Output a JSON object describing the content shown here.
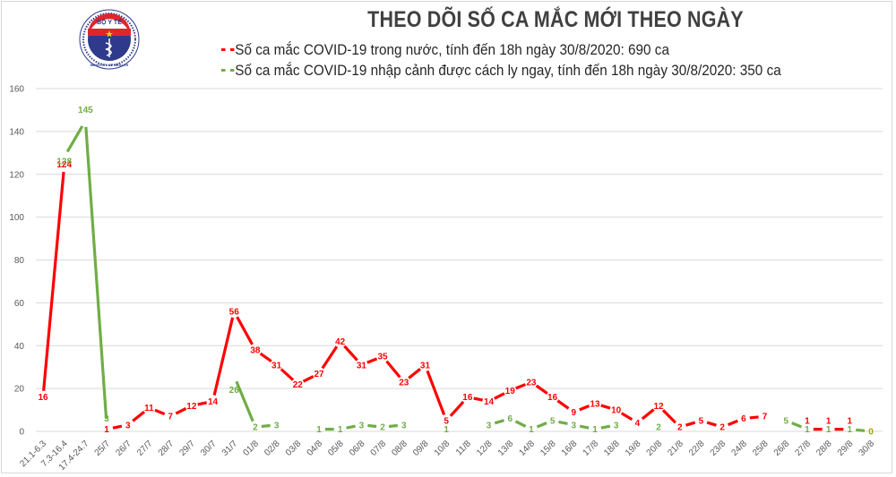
{
  "header": {
    "logo": {
      "top_text": "BỘ Y TẾ",
      "bottom_text": "MINISTRY OF HEALTH"
    },
    "title": "THEO DÕI SỐ CA MẮC MỚI THEO NGÀY"
  },
  "legend": {
    "items": [
      {
        "label": "Số ca mắc COVID-19 trong nước, tính đến 18h ngày 30/8/2020: 690 ca",
        "color": "#ff0000"
      },
      {
        "label": "Số ca mắc COVID-19 nhập cảnh được cách ly ngay, tính đến 18h ngày 30/8/2020: 350 ca",
        "color": "#70ad47"
      }
    ]
  },
  "chart_data": {
    "type": "line",
    "title": "THEO DÕI SỐ CA MẮC MỚI THEO NGÀY",
    "xlabel": "",
    "ylabel": "",
    "ylim": [
      0,
      160
    ],
    "yticks": [
      0,
      20,
      40,
      60,
      80,
      100,
      120,
      140,
      160
    ],
    "grid": true,
    "legend_position": "top",
    "categories": [
      "21.1-6.3",
      "7.3-16.4",
      "17.4-24.7",
      "25/7",
      "26/7",
      "27/7",
      "28/7",
      "29/7",
      "30/7",
      "31/7",
      "01/8",
      "02/8",
      "03/8",
      "04/8",
      "05/8",
      "06/8",
      "07/8",
      "08/8",
      "09/8",
      "10/8",
      "11/8",
      "12/8",
      "13/8",
      "14/8",
      "15/8",
      "16/8",
      "17/8",
      "18/8",
      "19/8",
      "20/8",
      "21/8",
      "22/8",
      "23/8",
      "24/8",
      "25/8",
      "26/8",
      "27/8",
      "28/8",
      "29/8",
      "30/8"
    ],
    "series": [
      {
        "name": "Số ca mắc COVID-19 trong nước, tính đến 18h ngày 30/8/2020: 690 ca",
        "color": "#ff0000",
        "values": [
          16,
          124,
          null,
          1,
          3,
          11,
          7,
          12,
          14,
          56,
          38,
          31,
          22,
          27,
          42,
          31,
          35,
          23,
          31,
          5,
          16,
          14,
          19,
          23,
          16,
          9,
          13,
          10,
          4,
          12,
          2,
          5,
          2,
          6,
          7,
          null,
          1,
          1,
          1,
          null
        ]
      },
      {
        "name": "Số ca mắc COVID-19 nhập cảnh được cách ly ngay, tính đến 18h ngày 30/8/2020: 350 ca",
        "color": "#70ad47",
        "values": [
          null,
          128,
          145,
          3,
          null,
          null,
          null,
          null,
          null,
          26,
          2,
          3,
          null,
          1,
          1,
          3,
          2,
          3,
          null,
          1,
          null,
          3,
          6,
          1,
          5,
          3,
          1,
          3,
          null,
          2,
          null,
          null,
          null,
          null,
          null,
          5,
          1,
          1,
          1,
          0
        ]
      }
    ]
  }
}
